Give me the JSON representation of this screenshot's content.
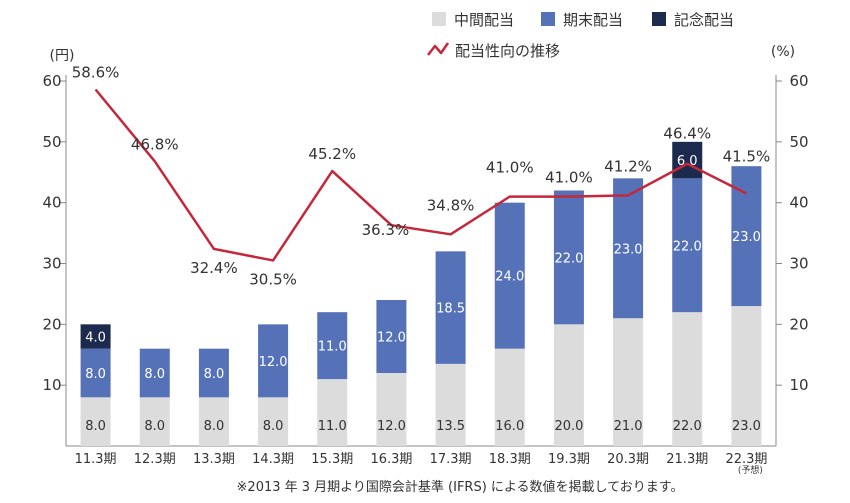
{
  "chart_data": {
    "type": "bar",
    "stacked": true,
    "categories": [
      "11.3期",
      "12.3期",
      "13.3期",
      "14.3期",
      "15.3期",
      "16.3期",
      "17.3期",
      "18.3期",
      "19.3期",
      "20.3期",
      "21.3期",
      "22.3期"
    ],
    "category_notes": [
      "",
      "",
      "",
      "",
      "",
      "",
      "",
      "",
      "",
      "",
      "",
      "(予想)"
    ],
    "series": [
      {
        "name": "中間配当",
        "values": [
          8.0,
          8.0,
          8.0,
          8.0,
          11.0,
          12.0,
          13.5,
          16.0,
          20.0,
          21.0,
          22.0,
          23.0
        ],
        "color": "#dcdcdc",
        "label_color": "#333333"
      },
      {
        "name": "期末配当",
        "values": [
          8.0,
          8.0,
          8.0,
          12.0,
          11.0,
          12.0,
          18.5,
          24.0,
          22.0,
          23.0,
          22.0,
          23.0
        ],
        "color": "#5572b8",
        "label_color": "#ffffff"
      },
      {
        "name": "記念配当",
        "values": [
          4.0,
          0,
          0,
          0,
          0,
          0,
          0,
          0,
          0,
          0,
          6.0,
          0
        ],
        "color": "#1c2a4e",
        "label_color": "#ffffff"
      }
    ],
    "line_series": {
      "name": "配当性向の推移",
      "values": [
        58.6,
        46.8,
        32.4,
        30.5,
        45.2,
        36.3,
        34.8,
        41.0,
        41.0,
        41.2,
        46.4,
        41.5
      ],
      "labels": [
        "58.6%",
        "46.8%",
        "32.4%",
        "30.5%",
        "45.2%",
        "36.3%",
        "34.8%",
        "41.0%",
        "41.0%",
        "41.2%",
        "46.4%",
        "41.5%"
      ],
      "color": "#c5283a"
    },
    "y_left": {
      "unit": "(円)",
      "ticks": [
        10,
        20,
        30,
        40,
        50,
        60
      ],
      "ylim": [
        0,
        60
      ]
    },
    "y_right": {
      "unit": "(%)",
      "ticks": [
        10,
        20,
        30,
        40,
        50,
        60
      ],
      "ylim": [
        0,
        60
      ]
    },
    "legend_placement": "top-right",
    "note": "※2013 年 3 月期より国際会計基準 (IFRS) による数値を掲載しております。"
  }
}
